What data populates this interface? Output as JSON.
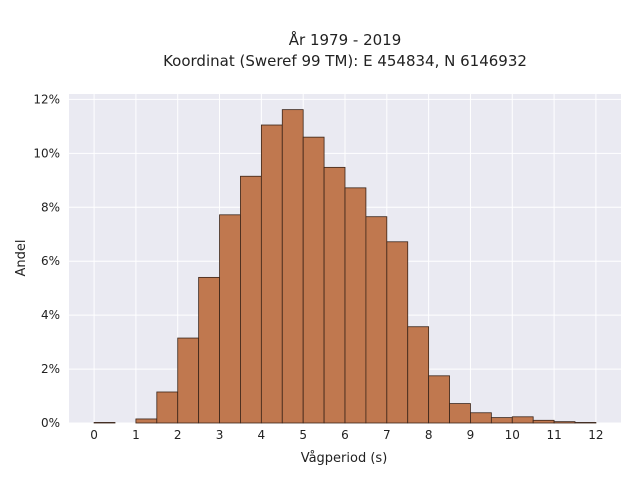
{
  "chart_data": {
    "type": "bar",
    "title_lines": [
      "År 1979 - 2019",
      "Koordinat (Sweref 99 TM): E 454834, N 6146932"
    ],
    "xlabel": "Vågperiod (s)",
    "ylabel": "Andel",
    "xlim": [
      -0.6,
      12.6
    ],
    "ylim": [
      0,
      12.2
    ],
    "bin_width": 0.5,
    "x_ticks": [
      0,
      1,
      2,
      3,
      4,
      5,
      6,
      7,
      8,
      9,
      10,
      11,
      12
    ],
    "y_ticks": [
      {
        "value": 0,
        "label": "0%"
      },
      {
        "value": 2,
        "label": "2%"
      },
      {
        "value": 4,
        "label": "4%"
      },
      {
        "value": 6,
        "label": "6%"
      },
      {
        "value": 8,
        "label": "8%"
      },
      {
        "value": 10,
        "label": "10%"
      },
      {
        "value": 12,
        "label": "12%"
      }
    ],
    "bin_starts": [
      0,
      0.5,
      1.0,
      1.5,
      2.0,
      2.5,
      3.0,
      3.5,
      4.0,
      4.5,
      5.0,
      5.5,
      6.0,
      6.5,
      7.0,
      7.5,
      8.0,
      8.5,
      9.0,
      9.5,
      10.0,
      10.5,
      11.0,
      11.5
    ],
    "values": [
      0.02,
      0.0,
      0.15,
      1.15,
      3.15,
      5.4,
      7.72,
      9.15,
      11.05,
      11.62,
      10.6,
      9.48,
      8.72,
      7.65,
      6.72,
      3.57,
      1.75,
      0.72,
      0.38,
      0.2,
      0.23,
      0.1,
      0.05,
      0.02
    ],
    "grid": true,
    "colors": {
      "bar_fill": "#c0784f",
      "bar_edge": "#3a2418",
      "plot_background": "#eaeaf2",
      "grid": "#ffffff"
    }
  }
}
